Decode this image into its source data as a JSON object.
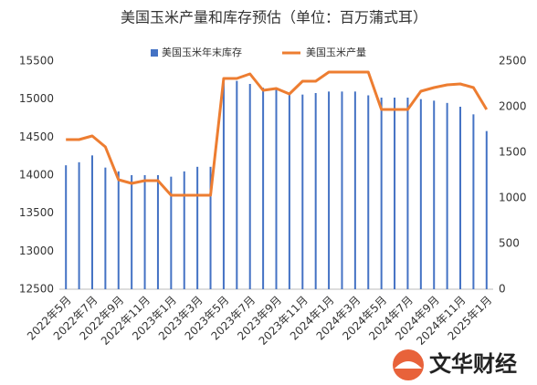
{
  "chart_data": {
    "type": "bar_line",
    "title": "美国玉米产量和库存预估（单位：百万蒲式耳）",
    "categories": [
      "2022年5月",
      null,
      "2022年7月",
      null,
      "2022年9月",
      null,
      "2022年11月",
      null,
      "2023年1月",
      null,
      "2023年3月",
      null,
      "2023年5月",
      null,
      "2023年7月",
      null,
      "2023年9月",
      null,
      "2023年11月",
      null,
      "2024年1月",
      null,
      "2024年3月",
      null,
      "2024年5月",
      null,
      "2024年7月",
      null,
      "2024年9月",
      null,
      "2024年11月",
      null,
      "2025年1月"
    ],
    "series": [
      {
        "name": "美国玉米年末库存",
        "color": "#4472c4",
        "type": "bar",
        "axis": "y",
        "values": [
          14130,
          14170,
          14260,
          14100,
          14050,
          14000,
          14000,
          14000,
          13980,
          14050,
          14110,
          14110,
          15250,
          15240,
          15200,
          15150,
          15150,
          15080,
          15060,
          15080,
          15100,
          15100,
          15100,
          15050,
          15020,
          15020,
          15020,
          15000,
          14980,
          14950,
          14900,
          14800,
          14580
        ]
      },
      {
        "name": "美国玉米产量",
        "color": "#ed7d31",
        "type": "line",
        "axis": "y2",
        "values": [
          1640,
          1640,
          1680,
          1560,
          1200,
          1160,
          1190,
          1190,
          1030,
          1030,
          1030,
          1030,
          2310,
          2310,
          2360,
          2180,
          2200,
          2140,
          2280,
          2280,
          2380,
          2380,
          2380,
          2380,
          1970,
          1970,
          1970,
          2170,
          2210,
          2240,
          2250,
          2210,
          1970
        ]
      }
    ],
    "ylim": [
      12500,
      15500
    ],
    "yticks": [
      12500,
      13000,
      13500,
      14000,
      14500,
      15000,
      15500
    ],
    "y2lim": [
      0,
      2500
    ],
    "y2ticks": [
      0,
      500,
      1000,
      1500,
      2000,
      2500
    ],
    "legend": "top",
    "watermark": "文华财经"
  }
}
